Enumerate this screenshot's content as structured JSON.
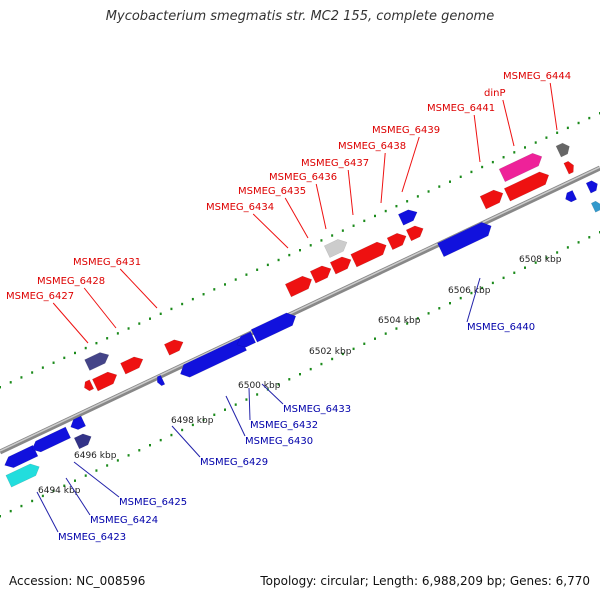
{
  "title": "Mycobacterium smegmatis str. MC2 155, complete genome",
  "footer": {
    "accession": "Accession: NC_008596",
    "summary": "Topology: circular; Length: 6,988,209 bp; Genes: 6,770"
  },
  "colors": {
    "backbone": "#9a9a9a",
    "forward_label": "#dd0000",
    "reverse_label": "#0000aa",
    "tick_forward": "#118811",
    "tick_reverse": "#118811"
  },
  "ticks": [
    "6494 kbp",
    "6496 kbp",
    "6498 kbp",
    "6500 kbp",
    "6502 kbp",
    "6504 kbp",
    "6506 kbp",
    "6508 kbp"
  ],
  "forward_labels": [
    "MSMEG_6427",
    "MSMEG_6428",
    "MSMEG_6431",
    "MSMEG_6434",
    "MSMEG_6435",
    "MSMEG_6436",
    "MSMEG_6437",
    "MSMEG_6438",
    "MSMEG_6439",
    "MSMEG_6441",
    "dinP",
    "MSMEG_6444"
  ],
  "reverse_labels": [
    "MSMEG_6423",
    "MSMEG_6424",
    "MSMEG_6425",
    "MSMEG_6429",
    "MSMEG_6430",
    "MSMEG_6432",
    "MSMEG_6433",
    "MSMEG_6440"
  ]
}
